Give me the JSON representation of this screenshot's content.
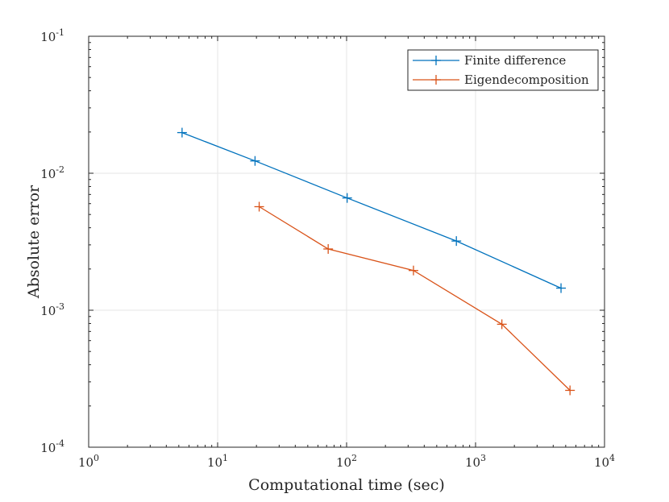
{
  "chart_data": {
    "type": "line",
    "title": "",
    "xlabel": "Computational time (sec)",
    "ylabel": "Absolute error",
    "xscale": "log",
    "yscale": "log",
    "xlim": [
      1,
      10000
    ],
    "ylim": [
      0.0001,
      0.1
    ],
    "grid": true,
    "legend_position": "top-right",
    "x_ticks": [
      {
        "value": 1,
        "base": "10",
        "exp": "0"
      },
      {
        "value": 10,
        "base": "10",
        "exp": "1"
      },
      {
        "value": 100,
        "base": "10",
        "exp": "2"
      },
      {
        "value": 1000,
        "base": "10",
        "exp": "3"
      },
      {
        "value": 10000,
        "base": "10",
        "exp": "4"
      }
    ],
    "y_ticks": [
      {
        "value": 0.0001,
        "base": "10",
        "exp": "-4"
      },
      {
        "value": 0.001,
        "base": "10",
        "exp": "-3"
      },
      {
        "value": 0.01,
        "base": "10",
        "exp": "-2"
      },
      {
        "value": 0.1,
        "base": "10",
        "exp": "-1"
      }
    ],
    "series": [
      {
        "name": "Finite difference",
        "color": "#0072BD",
        "marker": "+",
        "x": [
          5.3,
          19.5,
          101,
          710,
          4600
        ],
        "y": [
          0.0198,
          0.0123,
          0.0066,
          0.0032,
          0.00145
        ]
      },
      {
        "name": "Eigendecomposition",
        "color": "#D95319",
        "marker": "+",
        "x": [
          21,
          72,
          330,
          1600,
          5400
        ],
        "y": [
          0.0057,
          0.0028,
          0.00195,
          0.00079,
          0.00026
        ]
      }
    ]
  }
}
